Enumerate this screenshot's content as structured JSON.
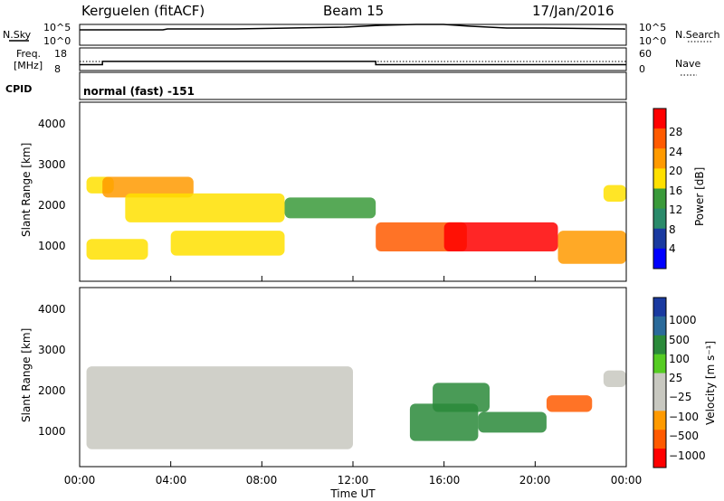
{
  "header": {
    "radar": "Kerguelen (fitACF)",
    "beam": "Beam 15",
    "date": "17/Jan/2016"
  },
  "nsky_panel": {
    "left_label": "N.Sky",
    "left_ticks": [
      "10^5",
      "10^0"
    ],
    "right_ticks": [
      "10^5",
      "10^0"
    ],
    "right_label": "N.Search"
  },
  "freq_panel": {
    "left_label_line1": "Freq.",
    "left_label_line2": "[MHz]",
    "left_ticks": [
      "18",
      "8"
    ],
    "right_ticks": [
      "60",
      "0"
    ],
    "right_label": "Nave"
  },
  "cpid_panel": {
    "label": "CPID",
    "mode_text": "normal (fast) -151"
  },
  "power_panel": {
    "ylabel": "Slant Range [km]",
    "yticks": [
      "4000",
      "3000",
      "2000",
      "1000"
    ],
    "colorbar_label": "Power [dB]",
    "colorbar_ticks": [
      "28",
      "24",
      "20",
      "16",
      "12",
      "8",
      "4"
    ],
    "colorbar_colors": [
      "#ff0000",
      "#ff5a00",
      "#ff9a00",
      "#ffe000",
      "#3a9a3a",
      "#2a8a6a",
      "#1a3aa0",
      "#0000ff"
    ]
  },
  "velocity_panel": {
    "ylabel": "Slant Range [km]",
    "yticks": [
      "4000",
      "3000",
      "2000",
      "1000"
    ],
    "colorbar_label": "Velocity [m s⁻¹]",
    "colorbar_ticks": [
      "1000",
      "500",
      "100",
      "25",
      "−25",
      "−100",
      "−500",
      "−1000"
    ],
    "colorbar_colors": [
      "#1a3aa0",
      "#2a6a9a",
      "#2a8a3a",
      "#55cc22",
      "#c8c8c0",
      "#c8c8c0",
      "#ff9a00",
      "#ff5a00",
      "#ff0000"
    ]
  },
  "xaxis": {
    "label": "Time UT",
    "ticks": [
      "00:00",
      "04:00",
      "08:00",
      "12:00",
      "16:00",
      "20:00",
      "00:00"
    ]
  },
  "chart_data": {
    "type": "heatmap",
    "time_range_hours": [
      0,
      24
    ],
    "range_km": [
      180,
      4500
    ],
    "frequency_MHz": [
      {
        "t_start": 0,
        "t_end": 1,
        "value": 10.5
      },
      {
        "t_start": 1,
        "t_end": 13,
        "value": 12.5
      },
      {
        "t_start": 13,
        "t_end": 24,
        "value": 10.5
      }
    ],
    "power_regions": [
      {
        "t0": 0.3,
        "t1": 3.0,
        "r0": 700,
        "r1": 1200,
        "level": 16
      },
      {
        "t0": 0.3,
        "t1": 1.5,
        "r0": 2300,
        "r1": 2700,
        "level": 16
      },
      {
        "t0": 1.0,
        "t1": 5.0,
        "r0": 2200,
        "r1": 2700,
        "level": 20
      },
      {
        "t0": 2.0,
        "t1": 9.0,
        "r0": 1600,
        "r1": 2300,
        "level": 16
      },
      {
        "t0": 4.0,
        "t1": 9.0,
        "r0": 800,
        "r1": 1400,
        "level": 16
      },
      {
        "t0": 9.0,
        "t1": 13.0,
        "r0": 1700,
        "r1": 2200,
        "level": 12
      },
      {
        "t0": 13.0,
        "t1": 17.0,
        "r0": 900,
        "r1": 1600,
        "level": 24
      },
      {
        "t0": 16.0,
        "t1": 21.0,
        "r0": 900,
        "r1": 1600,
        "level": 28
      },
      {
        "t0": 21.0,
        "t1": 24.0,
        "r0": 600,
        "r1": 1400,
        "level": 20
      },
      {
        "t0": 23.0,
        "t1": 24.0,
        "r0": 2100,
        "r1": 2500,
        "level": 16
      }
    ],
    "velocity_regions": [
      {
        "t0": 0.3,
        "t1": 12.0,
        "r0": 600,
        "r1": 2600,
        "value": 0
      },
      {
        "t0": 14.5,
        "t1": 17.5,
        "r0": 800,
        "r1": 1700,
        "value": 300
      },
      {
        "t0": 15.5,
        "t1": 18.0,
        "r0": 1500,
        "r1": 2200,
        "value": 100
      },
      {
        "t0": 17.5,
        "t1": 20.5,
        "r0": 1000,
        "r1": 1500,
        "value": 100
      },
      {
        "t0": 20.5,
        "t1": 22.5,
        "r0": 1500,
        "r1": 1900,
        "value": -300
      },
      {
        "t0": 23.0,
        "t1": 24.0,
        "r0": 2100,
        "r1": 2500,
        "value": 0
      }
    ]
  }
}
